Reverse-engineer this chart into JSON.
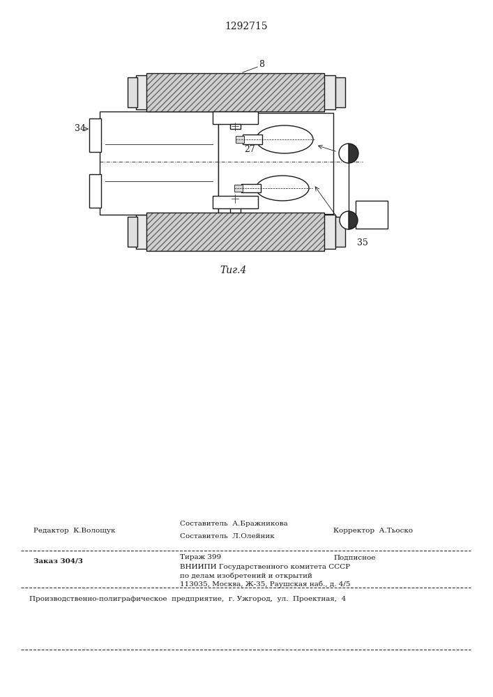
{
  "patent_number": "1292715",
  "fig_label": "Τиг.4",
  "label_34": "34",
  "label_27": "27",
  "label_8": "8",
  "label_35": "35",
  "editor_line": "Редактор  К.Волощук",
  "compiler1": "Составитель  А.Бражникова",
  "compiler2": "Составитель  Л.Олейник",
  "corrector": "Корректор  А.Тьоско",
  "order": "Заказ 304/3",
  "tirazh": "Тираж 399",
  "podpisnoe": "Подписное",
  "vnipi_line1": "ВНИИПИ Государственного комитета СССР",
  "vnipi_line2": "по делам изобретений и открытий",
  "vnipi_line3": "113035, Москва, Ж-35, Раушская наб., д. 4/5",
  "production_line": "Производственно-полиграфическое  предприятие,  г. Ужгород,  ул.  Проектная,  4",
  "line_color": "#1a1a1a"
}
